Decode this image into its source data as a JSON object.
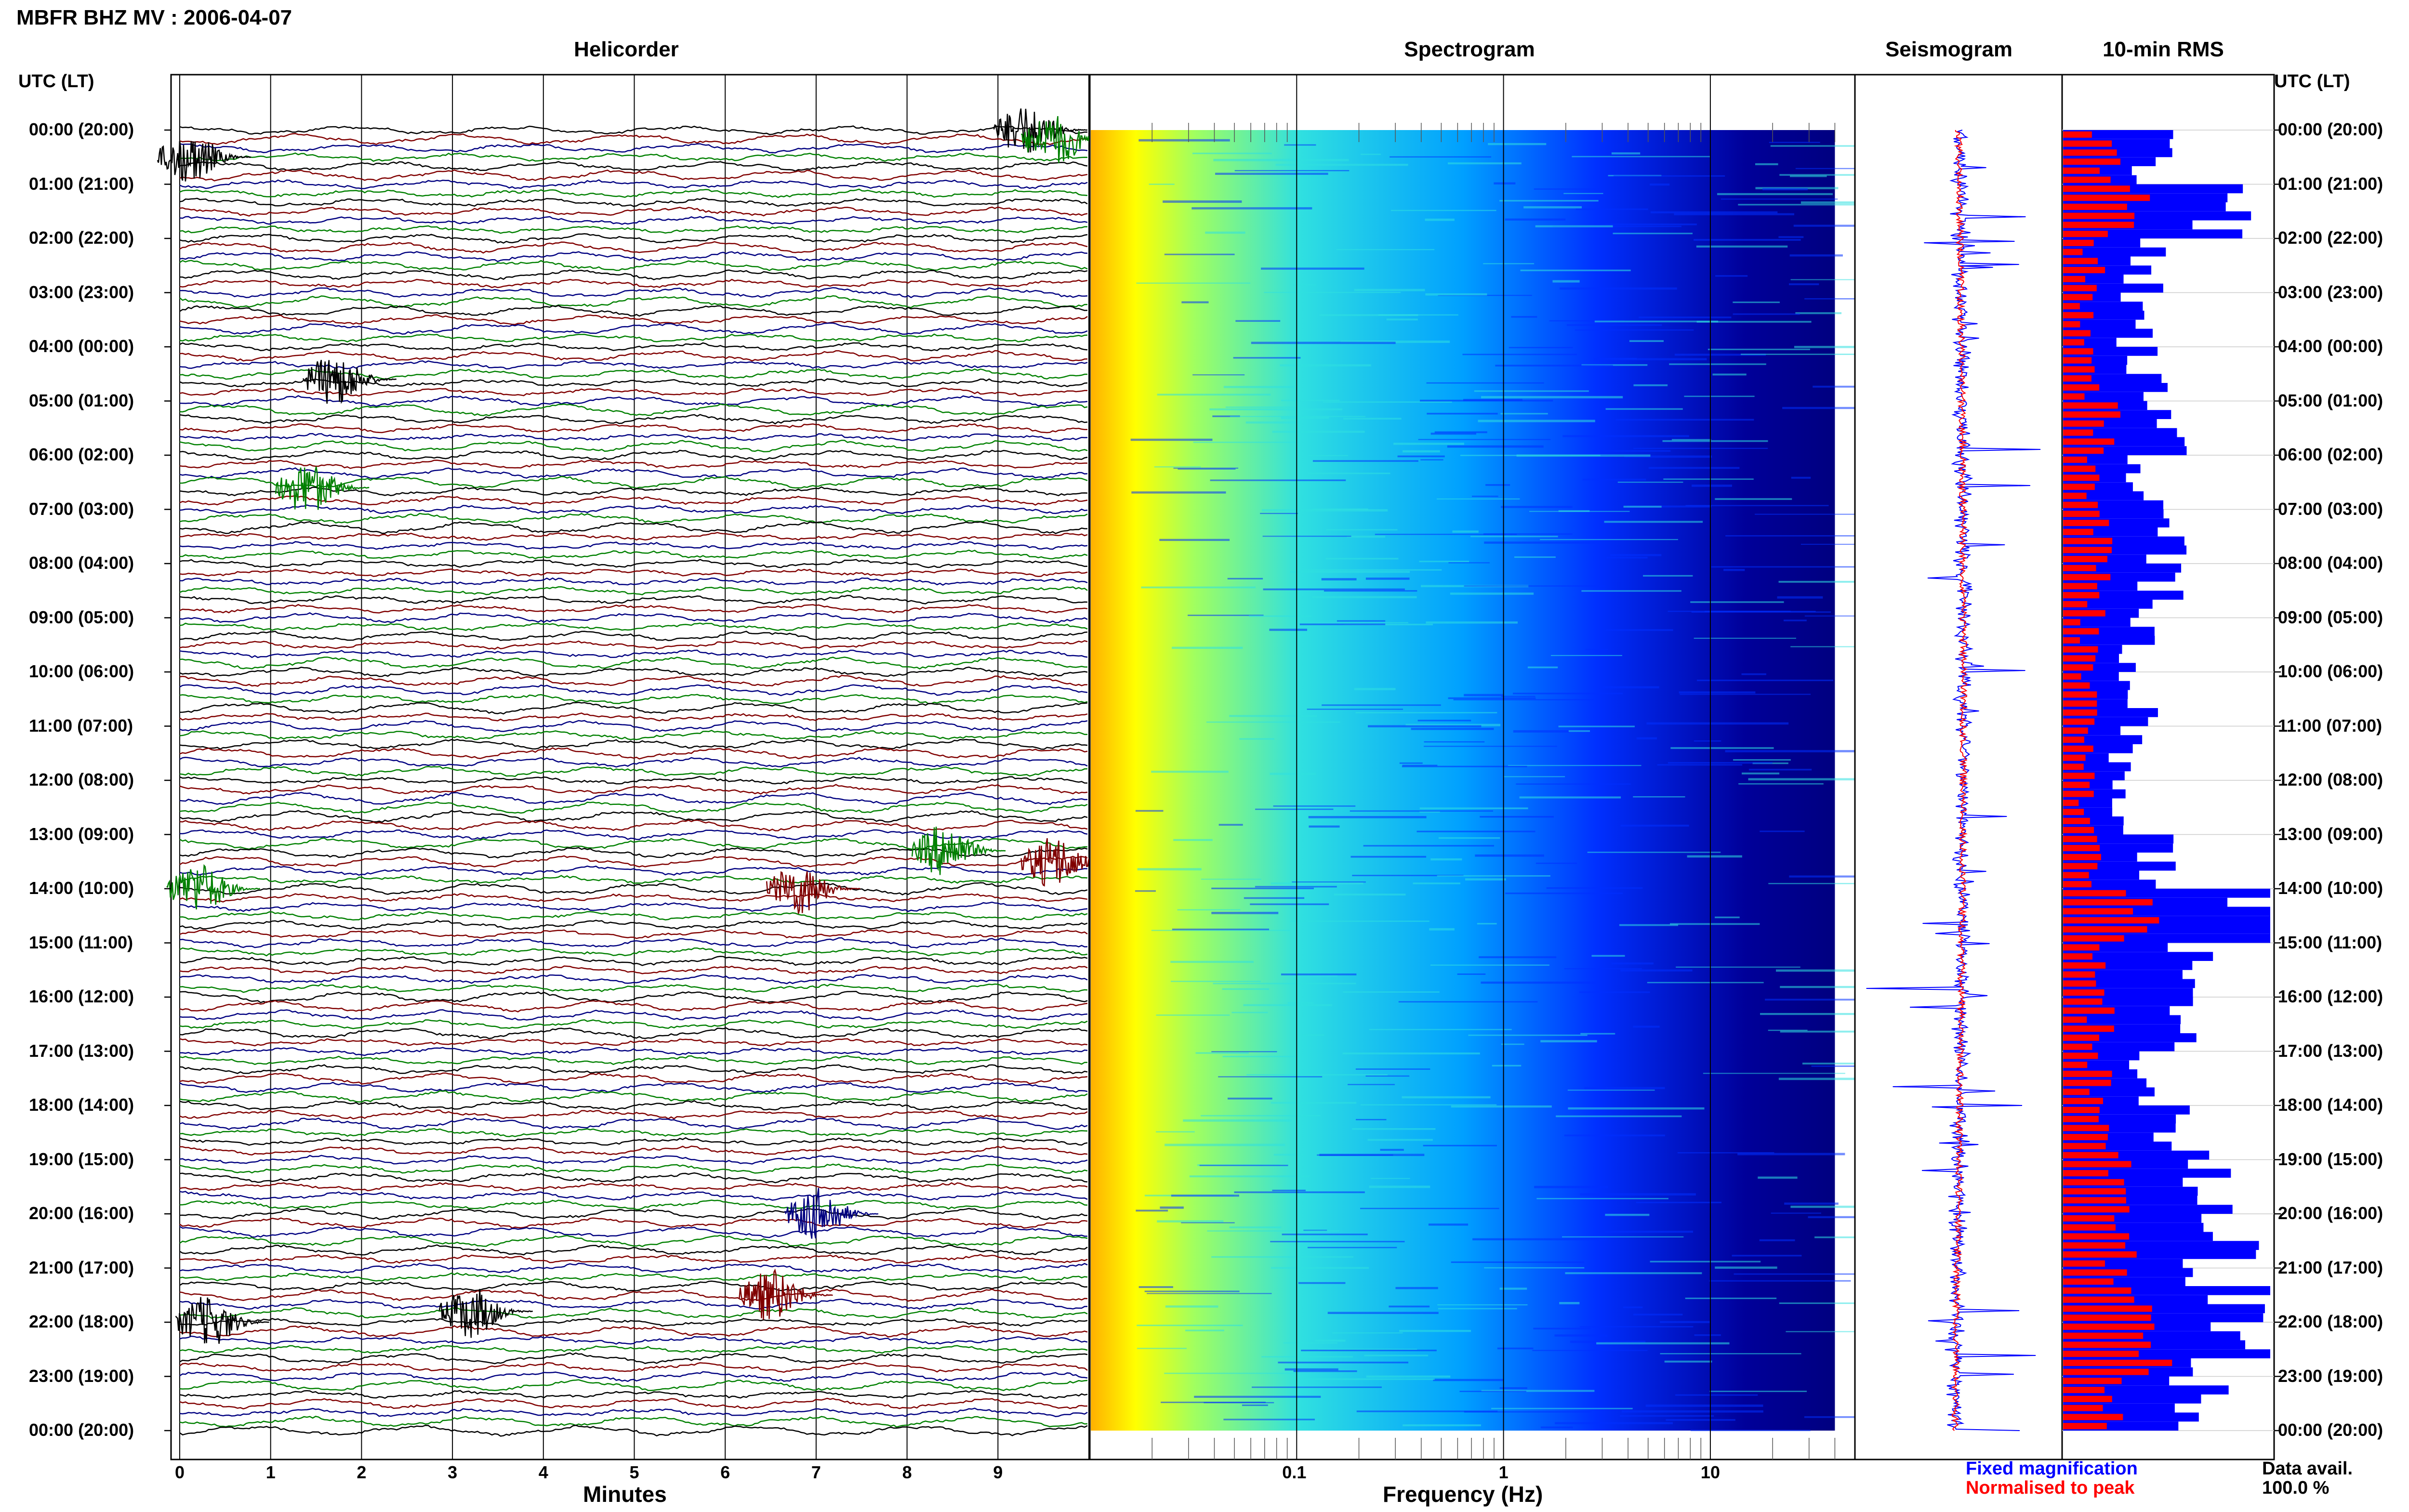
{
  "title": "MBFR BHZ MV : 2006-04-07",
  "panels": {
    "helicorder": "Helicorder",
    "spectrogram": "Spectrogram",
    "seismogram": "Seismogram",
    "rms": "10-min RMS"
  },
  "time_axis_label": "UTC (LT)",
  "time_labels": [
    "00:00 (20:00)",
    "01:00 (21:00)",
    "02:00 (22:00)",
    "03:00 (23:00)",
    "04:00 (00:00)",
    "05:00 (01:00)",
    "06:00 (02:00)",
    "07:00 (03:00)",
    "08:00 (04:00)",
    "09:00 (05:00)",
    "10:00 (06:00)",
    "11:00 (07:00)",
    "12:00 (08:00)",
    "13:00 (09:00)",
    "14:00 (10:00)",
    "15:00 (11:00)",
    "16:00 (12:00)",
    "17:00 (13:00)",
    "18:00 (14:00)",
    "19:00 (15:00)",
    "20:00 (16:00)",
    "21:00 (17:00)",
    "22:00 (18:00)",
    "23:00 (19:00)",
    "00:00 (20:00)"
  ],
  "minutes_ticks": [
    "0",
    "1",
    "2",
    "3",
    "4",
    "5",
    "6",
    "7",
    "8",
    "9"
  ],
  "minutes_label": "Minutes",
  "frequency_ticks": [
    "0.1",
    "1",
    "10"
  ],
  "frequency_label": "Frequency (Hz)",
  "legend": {
    "fixed": "Fixed magnification",
    "normalised": "Normalised to peak",
    "fixed_color": "#0000ff",
    "normalised_color": "#ff0000"
  },
  "data_avail": {
    "label": "Data avail.",
    "value": "100.0 %"
  },
  "chart_data": [
    {
      "type": "line",
      "name": "helicorder",
      "xlabel": "Minutes",
      "xlim": [
        0,
        10
      ],
      "ylabel": "UTC (LT)",
      "line_colors": [
        "#000000",
        "#800000",
        "#000080",
        "#008000"
      ],
      "traces_per_hour": 6,
      "hours": 24,
      "events": [
        {
          "hour": 0.0,
          "minute": 9.3,
          "color": "#000000"
        },
        {
          "hour": 0.2,
          "minute": 9.6,
          "color": "#008000"
        },
        {
          "hour": 0.5,
          "minute": 0.1,
          "color": "#000000"
        },
        {
          "hour": 4.6,
          "minute": 1.7,
          "color": "#000000"
        },
        {
          "hour": 6.6,
          "minute": 1.4,
          "color": "#008000"
        },
        {
          "hour": 13.3,
          "minute": 8.4,
          "color": "#008000"
        },
        {
          "hour": 13.5,
          "minute": 9.6,
          "color": "#800000"
        },
        {
          "hour": 14.0,
          "minute": 6.8,
          "color": "#800000"
        },
        {
          "hour": 14.0,
          "minute": 0.2,
          "color": "#008000"
        },
        {
          "hour": 20.0,
          "minute": 7.0,
          "color": "#000080"
        },
        {
          "hour": 21.8,
          "minute": 3.2,
          "color": "#000000"
        },
        {
          "hour": 22.0,
          "minute": 0.3,
          "color": "#000000"
        },
        {
          "hour": 21.5,
          "minute": 6.5,
          "color": "#800000"
        }
      ]
    },
    {
      "type": "heatmap",
      "name": "spectrogram",
      "xlabel": "Frequency (Hz)",
      "x_scale": "log",
      "xlim": [
        0.01,
        50
      ],
      "xticks": [
        0.1,
        1,
        10
      ],
      "ylabel": "UTC (LT)",
      "colormap": [
        "#000099",
        "#0030ff",
        "#00a0ff",
        "#30e0e0",
        "#a0ff60",
        "#ffff00",
        "#ffb000",
        "#ff6000"
      ]
    },
    {
      "type": "line",
      "name": "seismogram",
      "series": [
        {
          "name": "Fixed magnification",
          "color": "#0000ff"
        },
        {
          "name": "Normalised to peak",
          "color": "#ff0000"
        }
      ]
    },
    {
      "type": "bar",
      "name": "10-min RMS",
      "orientation": "horizontal",
      "series": [
        {
          "name": "Fixed magnification",
          "color": "#0000ff",
          "hourly": [
            0.45,
            0.7,
            0.4,
            0.35,
            0.4,
            0.5,
            0.42,
            0.55,
            0.5,
            0.35,
            0.38,
            0.3,
            0.3,
            0.45,
            0.85,
            0.6,
            0.5,
            0.45,
            0.55,
            0.65,
            0.75,
            0.8,
            0.85,
            0.65
          ]
        },
        {
          "name": "Normalised to peak",
          "color": "#ff0000",
          "hourly": [
            0.2,
            0.3,
            0.15,
            0.12,
            0.15,
            0.2,
            0.15,
            0.2,
            0.18,
            0.13,
            0.14,
            0.12,
            0.12,
            0.16,
            0.35,
            0.2,
            0.18,
            0.17,
            0.2,
            0.25,
            0.3,
            0.35,
            0.4,
            0.25
          ]
        }
      ]
    }
  ]
}
